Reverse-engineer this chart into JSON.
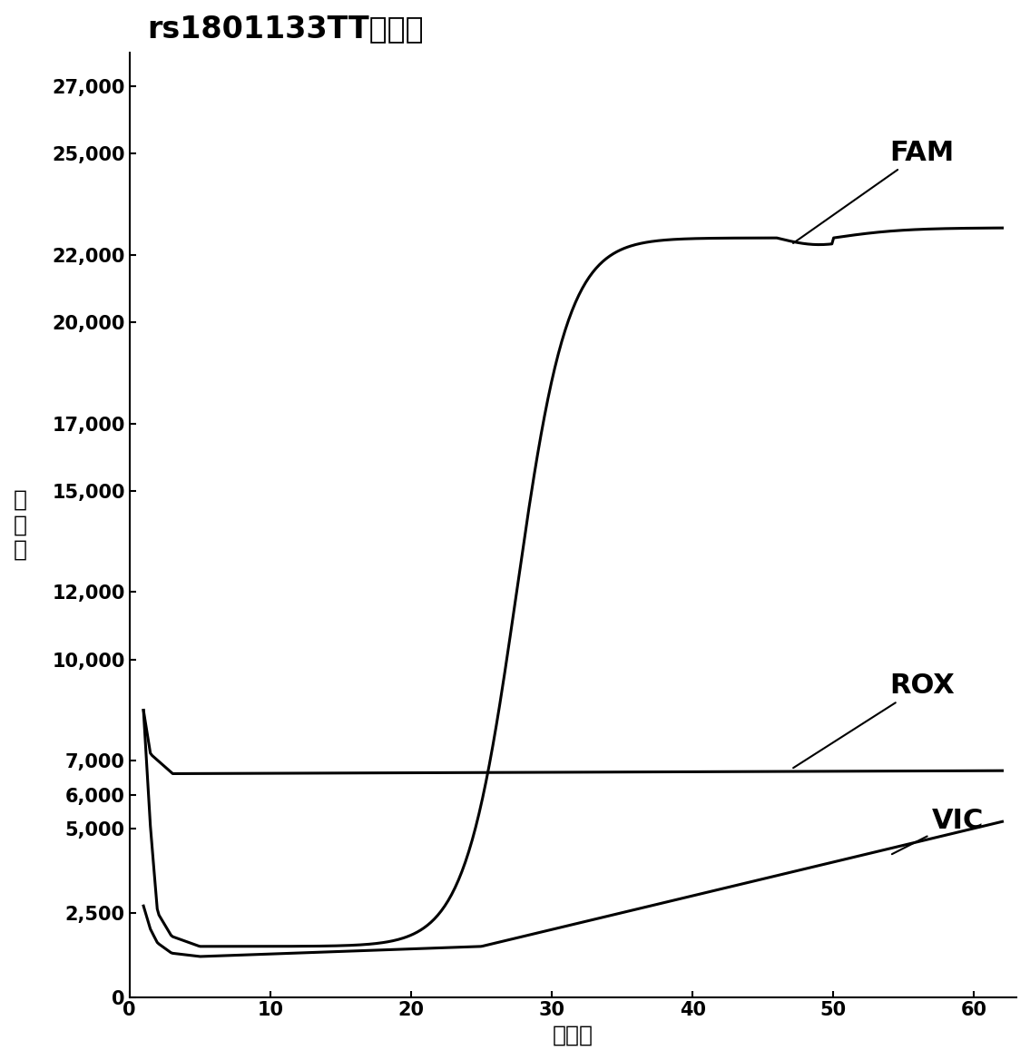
{
  "title": "rs1801133TT基因型",
  "xlabel": "循环数",
  "ylabel_chars": [
    "荧",
    "光",
    "值"
  ],
  "xlim": [
    0,
    63
  ],
  "ylim": [
    0,
    28000
  ],
  "yticks": [
    0,
    2500,
    5000,
    6000,
    7000,
    10000,
    12000,
    15000,
    17000,
    20000,
    22000,
    25000,
    27000
  ],
  "ytick_labels": [
    "0",
    "2,500",
    "5,000",
    "6,000",
    "7,000",
    "10,000",
    "12,000",
    "15,000",
    "17,000",
    "20,000",
    "22,000",
    "25,000",
    "27,000"
  ],
  "xticks": [
    0,
    10,
    20,
    30,
    40,
    50,
    60
  ],
  "line_color": "#000000",
  "bg_color": "#ffffff",
  "title_fontsize": 24,
  "label_fontsize": 18,
  "tick_fontsize": 15,
  "annotation_fontsize": 22
}
